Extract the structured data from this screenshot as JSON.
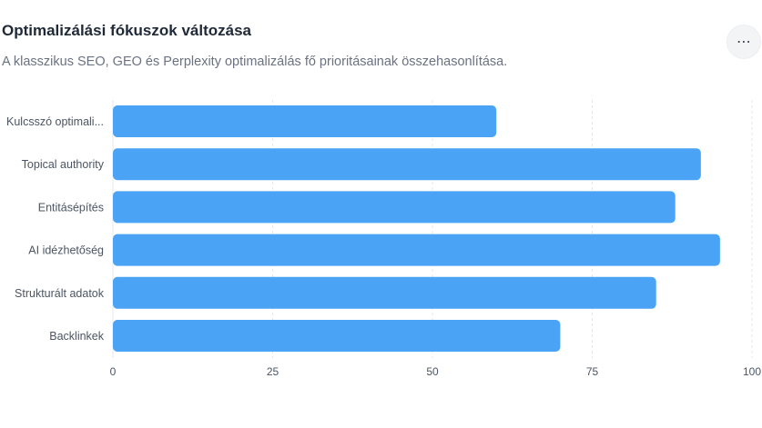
{
  "header": {
    "title": "Optimalizálási fókuszok változása",
    "subtitle": "A klasszikus SEO, GEO és Perplexity optimalizálás fő prioritásainak összehasonlítása.",
    "menu_icon": "more-horizontal-icon"
  },
  "colors": {
    "bar": "#4aa3f5",
    "grid": "#e5e7eb"
  },
  "chart_data": {
    "type": "bar",
    "orientation": "horizontal",
    "categories": [
      "Kulcsszó optimali...",
      "Topical authority",
      "Entitásépítés",
      "AI idézhetőség",
      "Strukturált adatok",
      "Backlinkek"
    ],
    "values": [
      60,
      92,
      88,
      95,
      85,
      70
    ],
    "xlim": [
      0,
      100
    ],
    "xticks": [
      "0",
      "25",
      "50",
      "75",
      "100"
    ],
    "grid": true
  }
}
